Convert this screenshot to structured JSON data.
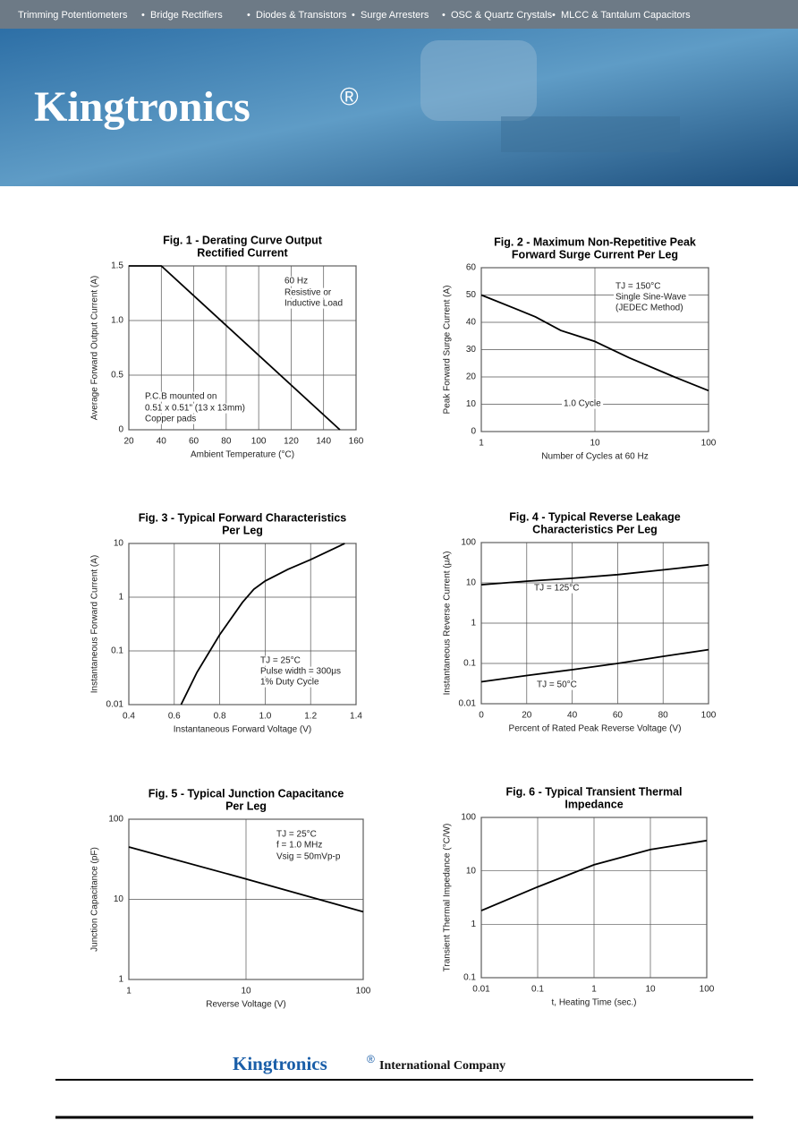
{
  "header": {
    "nav": [
      "Trimming Potentiometers",
      "Bridge Rectifiers",
      "Diodes & Transistors",
      "Surge Arresters",
      "OSC & Quartz Crystals",
      "MLCC & Tantalum Capacitors"
    ],
    "brand": "Kingtronics",
    "reg": "®"
  },
  "chart_data": [
    {
      "type": "line",
      "title": [
        "Fig. 1 - Derating Curve Output",
        "Rectified Current"
      ],
      "xlabel": "Ambient Temperature (°C)",
      "ylabel": "Average Forward Output Current (A)",
      "xlim": [
        20,
        160
      ],
      "xticks": [
        20,
        40,
        60,
        80,
        100,
        120,
        140,
        160
      ],
      "ylim": [
        0,
        1.5
      ],
      "yticks": [
        0,
        0.5,
        {
          "value": 1,
          "label": "1.0"
        },
        1.5
      ],
      "grid": true,
      "x": [
        20,
        40,
        150
      ],
      "series": [
        {
          "color": "#000000",
          "values": [
            1.5,
            1.5,
            0
          ]
        }
      ],
      "annotations": [
        "60 Hz",
        "Resistive or",
        "Inductive Load",
        "P.C.B mounted on",
        "0.51 x 0.51\" (13 x 13mm)",
        "Copper pads"
      ]
    },
    {
      "type": "line",
      "title": [
        "Fig. 2 - Maximum Non-Repetitive Peak",
        "Forward Surge Current Per Leg"
      ],
      "xlabel": "Number of Cycles at 60 Hz",
      "ylabel": "Peak Forward Surge Current (A)",
      "xscale": "log",
      "xlim": [
        1,
        100
      ],
      "xticks": [
        1,
        10,
        100
      ],
      "ylim": [
        0,
        60
      ],
      "yticks": [
        0,
        10,
        20,
        30,
        40,
        50,
        60
      ],
      "grid": true,
      "x": [
        1,
        2,
        3,
        5,
        10,
        20,
        50,
        100
      ],
      "series": [
        {
          "color": "#000000",
          "values": [
            50,
            45,
            42,
            37,
            33,
            27,
            20,
            15
          ]
        }
      ],
      "annotations": [
        "TJ = 150°C",
        "Single Sine-Wave",
        "(JEDEC Method)",
        "1.0 Cycle"
      ]
    },
    {
      "type": "line",
      "title": [
        "Fig. 3 - Typical Forward Characteristics",
        "Per Leg"
      ],
      "xlabel": "Instantaneous Forward Voltage (V)",
      "ylabel": "Instantaneous Forward Current (A)",
      "xlim": [
        0.4,
        1.4
      ],
      "xticks": [
        0.4,
        0.6,
        0.8,
        {
          "value": 1,
          "label": "1.0"
        },
        1.2,
        1.4
      ],
      "yscale": "log",
      "ylim": [
        0.01,
        10
      ],
      "yticks": [
        0.01,
        0.1,
        1,
        10
      ],
      "grid": true,
      "x": [
        0.63,
        0.7,
        0.8,
        0.9,
        0.95,
        1.0,
        1.1,
        1.2,
        1.35
      ],
      "series": [
        {
          "color": "#000000",
          "values": [
            0.01,
            0.04,
            0.2,
            0.8,
            1.4,
            2,
            3.3,
            5,
            10
          ]
        }
      ],
      "annotations": [
        "TJ = 25°C",
        "Pulse width = 300μs",
        "1% Duty Cycle"
      ]
    },
    {
      "type": "line",
      "title": [
        "Fig. 4 - Typical Reverse Leakage",
        "Characteristics Per Leg"
      ],
      "xlabel": "Percent of Rated Peak Reverse Voltage (V)",
      "ylabel": "Instantaneous Reverse Current (μA)",
      "xlim": [
        0,
        100
      ],
      "xticks": [
        0,
        20,
        40,
        60,
        80,
        100
      ],
      "yscale": "log",
      "ylim": [
        0.01,
        100
      ],
      "yticks": [
        0.01,
        0.1,
        1,
        10,
        100
      ],
      "grid": true,
      "x": [
        0,
        20,
        40,
        60,
        80,
        100
      ],
      "series": [
        {
          "name": "TJ = 125°C",
          "color": "#000000",
          "values": [
            9,
            11,
            13,
            16,
            21,
            28
          ]
        },
        {
          "name": "TJ = 50°C",
          "color": "#000000",
          "values": [
            0.035,
            0.05,
            0.07,
            0.1,
            0.15,
            0.22
          ]
        }
      ],
      "annotations": []
    },
    {
      "type": "line",
      "title": [
        "Fig. 5 - Typical Junction Capacitance",
        "Per Leg"
      ],
      "xlabel": "Reverse Voltage (V)",
      "ylabel": "Junction Capacitance (pF)",
      "xscale": "log",
      "xlim": [
        1,
        100
      ],
      "xticks": [
        1,
        10,
        100
      ],
      "yscale": "log",
      "ylim": [
        1,
        100
      ],
      "yticks": [
        1,
        10,
        100
      ],
      "grid": true,
      "x": [
        1,
        10,
        100
      ],
      "series": [
        {
          "color": "#000000",
          "values": [
            45,
            18,
            7
          ]
        }
      ],
      "annotations": [
        "TJ = 25°C",
        "f = 1.0 MHz",
        "Vsig = 50mVp-p"
      ]
    },
    {
      "type": "line",
      "title": [
        "Fig. 6 - Typical Transient Thermal",
        "Impedance"
      ],
      "xlabel": "t, Heating Time (sec.)",
      "ylabel": "Transient Thermal Impedance (°C/W)",
      "xscale": "log",
      "xlim": [
        0.01,
        100
      ],
      "xticks": [
        0.01,
        0.1,
        1,
        10,
        100
      ],
      "yscale": "log",
      "ylim": [
        0.1,
        100
      ],
      "yticks": [
        0.1,
        1,
        10,
        100
      ],
      "grid": true,
      "x": [
        0.01,
        0.1,
        1,
        10,
        100
      ],
      "series": [
        {
          "color": "#000000",
          "values": [
            1.8,
            5,
            13,
            25,
            37
          ]
        }
      ],
      "annotations": []
    }
  ],
  "footer": {
    "brand": "Kingtronics",
    "reg": "®",
    "company": "International Company"
  }
}
